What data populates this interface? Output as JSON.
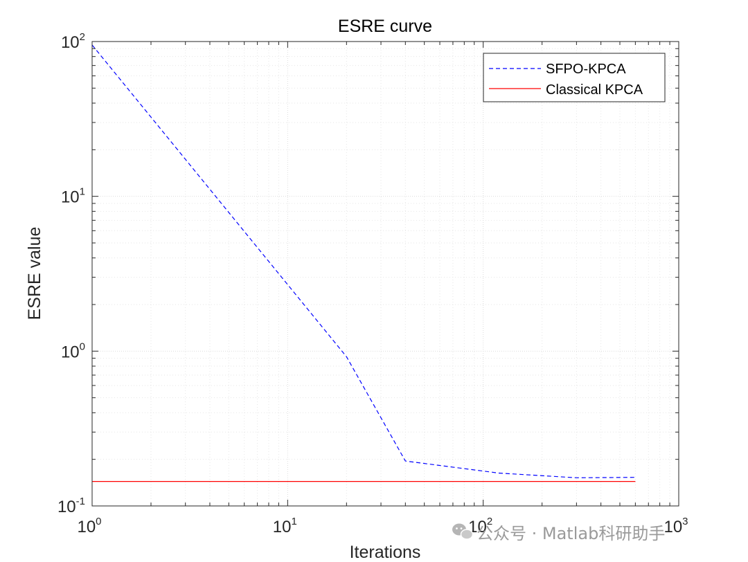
{
  "chart_data": {
    "type": "line",
    "title": "ESRE curve",
    "xlabel": "Iterations",
    "ylabel": "ESRE value",
    "xscale": "log",
    "yscale": "log",
    "xlim": [
      1,
      1000
    ],
    "ylim": [
      0.1,
      100
    ],
    "x_ticks": [
      {
        "base": "10",
        "exp": "0",
        "value": 1
      },
      {
        "base": "10",
        "exp": "1",
        "value": 10
      },
      {
        "base": "10",
        "exp": "2",
        "value": 100
      },
      {
        "base": "10",
        "exp": "3",
        "value": 1000
      }
    ],
    "y_ticks": [
      {
        "base": "10",
        "exp": "-1",
        "value": 0.1
      },
      {
        "base": "10",
        "exp": "0",
        "value": 1
      },
      {
        "base": "10",
        "exp": "1",
        "value": 10
      },
      {
        "base": "10",
        "exp": "2",
        "value": 100
      }
    ],
    "grid": true,
    "minor_grid": true,
    "legend_position": "top-right",
    "series": [
      {
        "name": "SFPO-KPCA",
        "color": "#0000ff",
        "style": "dashed",
        "x": [
          1,
          20,
          40,
          120,
          300,
          600
        ],
        "y": [
          95,
          0.92,
          0.195,
          0.163,
          0.152,
          0.153
        ]
      },
      {
        "name": "Classical KPCA",
        "color": "#ff0000",
        "style": "solid",
        "x": [
          1,
          600
        ],
        "y": [
          0.144,
          0.144
        ]
      }
    ]
  },
  "watermark": {
    "text": "公众号 · Matlab科研助手",
    "icon": "wechat-icon"
  }
}
